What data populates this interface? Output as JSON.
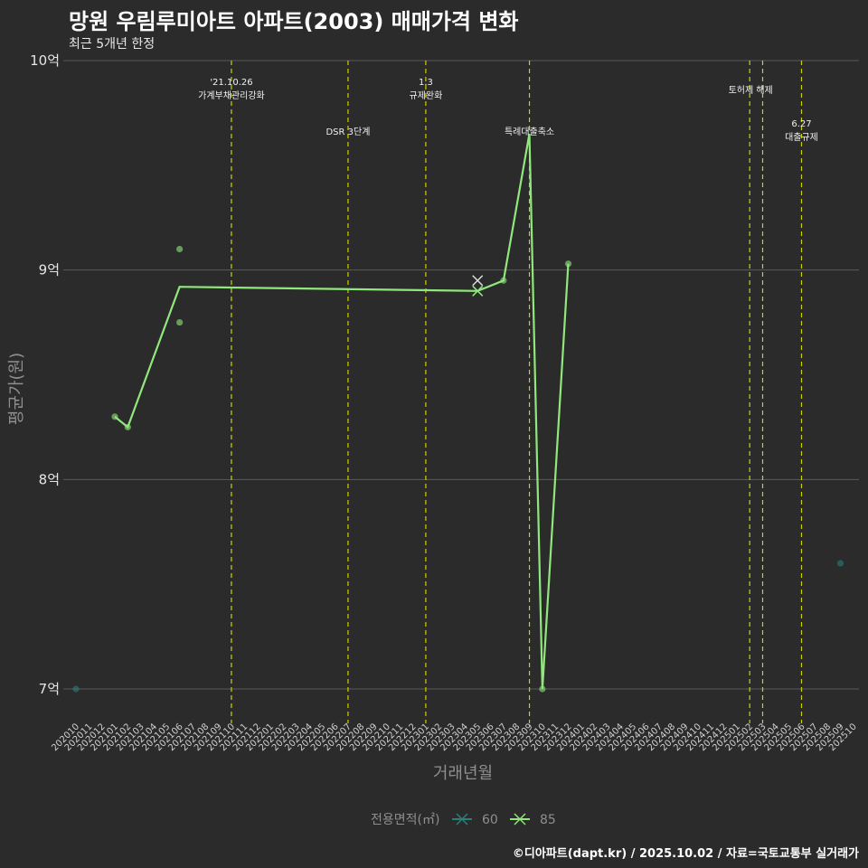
{
  "header": {
    "title": "망원 우림루미아트 아파트(2003) 매매가격 변화",
    "subtitle": "최근 5개년 한정"
  },
  "caption": "©디아파트(dapt.kr) / 2025.10.02 / 자료=국토교통부 실거래가",
  "chart_data": {
    "type": "line",
    "xlabel": "거래년월",
    "ylabel": "평균가(원)",
    "ylim": [
      6.9,
      10.0
    ],
    "y_ticks": [
      {
        "value": 7,
        "label": "7억"
      },
      {
        "value": 8,
        "label": "8억"
      },
      {
        "value": 9,
        "label": "9억"
      },
      {
        "value": 10,
        "label": "10억"
      }
    ],
    "categories": [
      "202010",
      "202011",
      "202012",
      "202101",
      "202102",
      "202103",
      "202104",
      "202105",
      "202106",
      "202107",
      "202108",
      "202109",
      "202110",
      "202111",
      "202112",
      "202201",
      "202202",
      "202203",
      "202204",
      "202205",
      "202206",
      "202207",
      "202208",
      "202209",
      "202210",
      "202211",
      "202212",
      "202301",
      "202302",
      "202303",
      "202304",
      "202305",
      "202306",
      "202307",
      "202308",
      "202309",
      "202310",
      "202311",
      "202312",
      "202401",
      "202402",
      "202403",
      "202404",
      "202405",
      "202406",
      "202407",
      "202408",
      "202409",
      "202410",
      "202411",
      "202412",
      "202501",
      "202502",
      "202503",
      "202504",
      "202505",
      "202506",
      "202507",
      "202508",
      "202509",
      "202510"
    ],
    "series": [
      {
        "name": "60",
        "color": "#2a7f7a",
        "line": [],
        "points": [
          {
            "x": "202010",
            "y": 7.0
          },
          {
            "x": "202509",
            "y": 7.6
          }
        ],
        "cross": [
          {
            "x": "202305",
            "y": 8.95
          }
        ]
      },
      {
        "name": "85",
        "color": "#90e87c",
        "line": [
          {
            "x": "202101",
            "y": 8.3
          },
          {
            "x": "202102",
            "y": 8.25
          },
          {
            "x": "202106",
            "y": 8.92
          },
          {
            "x": "202305",
            "y": 8.9
          },
          {
            "x": "202307",
            "y": 8.95
          },
          {
            "x": "202309",
            "y": 9.65
          },
          {
            "x": "202310",
            "y": 7.0
          },
          {
            "x": "202312",
            "y": 9.03
          }
        ],
        "points": [
          {
            "x": "202101",
            "y": 8.3
          },
          {
            "x": "202102",
            "y": 8.25
          },
          {
            "x": "202106",
            "y": 9.1
          },
          {
            "x": "202106",
            "y": 8.75
          },
          {
            "x": "202307",
            "y": 8.95
          },
          {
            "x": "202310",
            "y": 7.0
          },
          {
            "x": "202312",
            "y": 9.03
          }
        ],
        "cross": [
          {
            "x": "202305",
            "y": 8.9
          }
        ]
      }
    ],
    "events": [
      {
        "x": "202110",
        "lines": [
          "'21.10.26",
          "가계부채관리강화"
        ],
        "level": "top"
      },
      {
        "x": "202207",
        "lines": [
          "DSR 3단계"
        ],
        "level": "low"
      },
      {
        "x": "202301",
        "lines": [
          "1.3",
          "규제완화"
        ],
        "level": "top"
      },
      {
        "x": "202309",
        "lines": [
          "특례대출축소"
        ],
        "level": "low"
      },
      {
        "x": "202502",
        "lines": [
          "토허제 해제"
        ],
        "level": "mid"
      },
      {
        "x": "202503",
        "lines": [],
        "level": "none"
      },
      {
        "x": "202506",
        "lines": [
          "6.27",
          "대출규제"
        ],
        "level": "low2"
      }
    ],
    "legend": {
      "title": "전용면적(㎡)",
      "position": "bottom"
    }
  }
}
